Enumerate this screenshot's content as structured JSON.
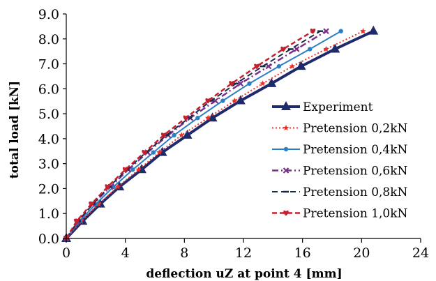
{
  "chart_data": {
    "type": "line",
    "title": "",
    "xlabel": "deflection uZ at point 4 [mm]",
    "ylabel": "total load [kN]",
    "xlim": [
      0,
      24
    ],
    "ylim": [
      0,
      9
    ],
    "x_ticks": [
      0,
      4,
      8,
      12,
      16,
      20,
      24
    ],
    "y_ticks": [
      0,
      1,
      2,
      3,
      4,
      5,
      6,
      7,
      8,
      9
    ],
    "x_tick_labels": [
      "0",
      "4",
      "8",
      "12",
      "16",
      "20",
      "24"
    ],
    "y_tick_labels": [
      "0.0",
      "1.0",
      "2.0",
      "3.0",
      "4.0",
      "5.0",
      "6.0",
      "7.0",
      "8.0",
      "9.0"
    ],
    "grid": false,
    "legend_position": "right",
    "series": [
      {
        "name": "Experiment",
        "color": "#1f2a6b",
        "dash": "",
        "width": 4,
        "marker": "triangle",
        "points": [
          [
            0,
            0
          ],
          [
            1.1,
            0.69
          ],
          [
            2.3,
            1.38
          ],
          [
            3.6,
            2.07
          ],
          [
            5.1,
            2.76
          ],
          [
            6.5,
            3.45
          ],
          [
            8.2,
            4.14
          ],
          [
            9.9,
            4.83
          ],
          [
            11.8,
            5.52
          ],
          [
            13.9,
            6.21
          ],
          [
            15.9,
            6.9
          ],
          [
            18.2,
            7.59
          ],
          [
            20.8,
            8.31
          ]
        ]
      },
      {
        "name": "Pretension 0,2kN",
        "color": "#e8302a",
        "dash": "2 3",
        "width": 2,
        "marker": "star",
        "points": [
          [
            0,
            0
          ],
          [
            1.0,
            0.69
          ],
          [
            2.2,
            1.38
          ],
          [
            3.5,
            2.07
          ],
          [
            4.9,
            2.76
          ],
          [
            6.3,
            3.45
          ],
          [
            7.8,
            4.14
          ],
          [
            9.6,
            4.83
          ],
          [
            11.4,
            5.52
          ],
          [
            13.3,
            6.21
          ],
          [
            15.3,
            6.9
          ],
          [
            17.6,
            7.59
          ],
          [
            20.1,
            8.31
          ]
        ]
      },
      {
        "name": "Pretension 0,4kN",
        "color": "#2c7fc2",
        "dash": "",
        "width": 2,
        "marker": "circle",
        "points": [
          [
            0,
            0
          ],
          [
            0.9,
            0.69
          ],
          [
            2.0,
            1.38
          ],
          [
            3.2,
            2.07
          ],
          [
            4.5,
            2.76
          ],
          [
            5.9,
            3.45
          ],
          [
            7.3,
            4.14
          ],
          [
            8.9,
            4.83
          ],
          [
            10.6,
            5.52
          ],
          [
            12.4,
            6.21
          ],
          [
            14.4,
            6.9
          ],
          [
            16.5,
            7.59
          ],
          [
            18.6,
            8.31
          ]
        ]
      },
      {
        "name": "Pretension 0,6kN",
        "color": "#7b2f8a",
        "dash": "9 4 2 4",
        "width": 2.5,
        "marker": "x",
        "points": [
          [
            0,
            0
          ],
          [
            0.8,
            0.69
          ],
          [
            1.8,
            1.38
          ],
          [
            3.0,
            2.07
          ],
          [
            4.2,
            2.76
          ],
          [
            5.5,
            3.45
          ],
          [
            6.9,
            4.14
          ],
          [
            8.4,
            4.83
          ],
          [
            10.1,
            5.52
          ],
          [
            11.8,
            6.21
          ],
          [
            13.7,
            6.9
          ],
          [
            15.6,
            7.59
          ],
          [
            17.6,
            8.31
          ]
        ]
      },
      {
        "name": "Pretension 0,8kN",
        "color": "#1a2a4a",
        "dash": "8 5",
        "width": 2,
        "marker": "dash",
        "points": [
          [
            0,
            0
          ],
          [
            0.8,
            0.69
          ],
          [
            1.8,
            1.38
          ],
          [
            2.9,
            2.07
          ],
          [
            4.1,
            2.76
          ],
          [
            5.4,
            3.45
          ],
          [
            6.8,
            4.14
          ],
          [
            8.3,
            4.83
          ],
          [
            9.8,
            5.52
          ],
          [
            11.5,
            6.21
          ],
          [
            13.3,
            6.9
          ],
          [
            15.2,
            7.59
          ],
          [
            17.2,
            8.31
          ]
        ]
      },
      {
        "name": "Pretension 1,0kN",
        "color": "#c4202e",
        "dash": "7 4",
        "width": 2.5,
        "marker": "heart",
        "points": [
          [
            0,
            0
          ],
          [
            0.7,
            0.69
          ],
          [
            1.7,
            1.38
          ],
          [
            2.8,
            2.07
          ],
          [
            4.0,
            2.76
          ],
          [
            5.3,
            3.45
          ],
          [
            6.6,
            4.14
          ],
          [
            8.1,
            4.83
          ],
          [
            9.6,
            5.52
          ],
          [
            11.2,
            6.21
          ],
          [
            12.9,
            6.9
          ],
          [
            14.7,
            7.59
          ],
          [
            16.7,
            8.31
          ]
        ]
      }
    ]
  }
}
